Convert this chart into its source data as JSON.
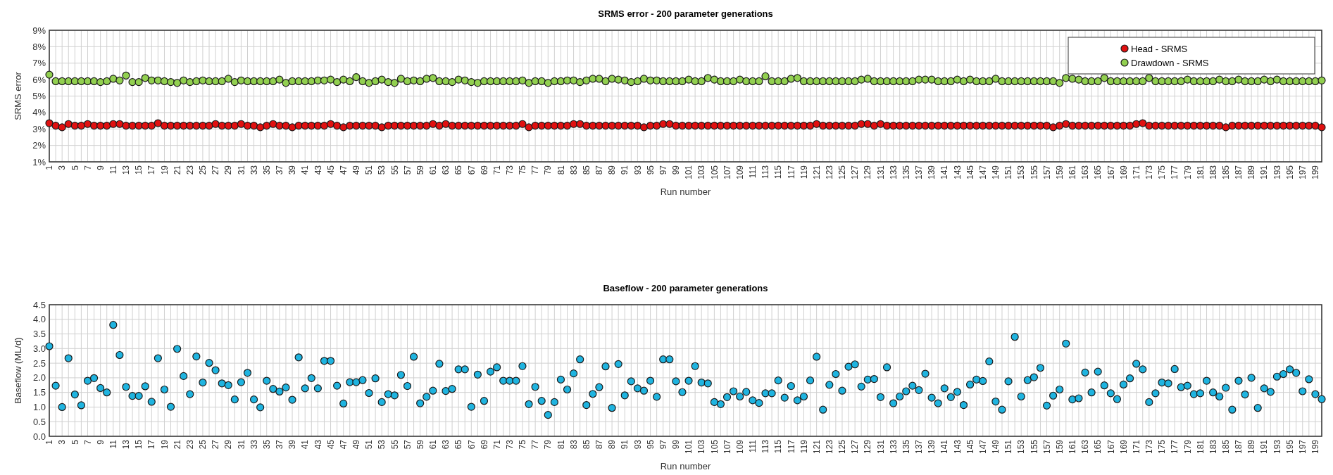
{
  "chart_data": [
    {
      "type": "scatter",
      "title": "SRMS error  - 200 parameter generations",
      "xlabel": "Run number",
      "ylabel": "SRMS error",
      "categories": [
        "1",
        null,
        "3",
        null,
        "5",
        null,
        "7",
        null,
        "9",
        null,
        "11",
        null,
        "13",
        null,
        "15",
        null,
        "17",
        null,
        "19",
        null,
        "21",
        null,
        "23",
        null,
        "25",
        null,
        "27",
        null,
        "29",
        null,
        "31",
        null,
        "33",
        null,
        "35",
        null,
        "37",
        null,
        "39",
        null,
        "41",
        null,
        "43",
        null,
        "45",
        null,
        "47",
        null,
        "49",
        null,
        "51",
        null,
        "53",
        null,
        "55",
        null,
        "57",
        null,
        "59",
        null,
        "61",
        null,
        "63",
        null,
        "65",
        null,
        "67",
        null,
        "69",
        null,
        "71",
        null,
        "73",
        null,
        "75",
        null,
        "77",
        null,
        "79",
        null,
        "81",
        null,
        "83",
        null,
        "85",
        null,
        "87",
        null,
        "89",
        null,
        "91",
        null,
        "93",
        null,
        "95",
        null,
        "97",
        null,
        "99",
        null,
        "101",
        null,
        "103",
        null,
        "105",
        null,
        "107",
        null,
        "109",
        null,
        "111",
        null,
        "113",
        null,
        "115",
        null,
        "117",
        null,
        "119",
        null,
        "121",
        null,
        "123",
        null,
        "125",
        null,
        "127",
        null,
        "129",
        null,
        "131",
        null,
        "133",
        null,
        "135",
        null,
        "137",
        null,
        "139",
        null,
        "141",
        null,
        "143",
        null,
        "145",
        null,
        "147",
        null,
        "149",
        null,
        "151",
        null,
        "153",
        null,
        "155",
        null,
        "157",
        null,
        "159",
        null,
        "161",
        null,
        "163",
        null,
        "165",
        null,
        "167",
        null,
        "169",
        null,
        "171",
        null,
        "173",
        null,
        "175",
        null,
        "177",
        null,
        "179",
        null,
        "181",
        null,
        "183",
        null,
        "185",
        null,
        "187",
        null,
        "189",
        null,
        "191",
        null,
        "193",
        null,
        "195",
        null,
        "197",
        null,
        "199",
        null
      ],
      "series": [
        {
          "name": "Head - SRMS",
          "color": "#e01010",
          "values": [
            3.35,
            3.2,
            3.1,
            3.3,
            3.2,
            3.2,
            3.3,
            3.2,
            3.2,
            3.2,
            3.3,
            3.3,
            3.2,
            3.2,
            3.2,
            3.2,
            3.2,
            3.35,
            3.2,
            3.2,
            3.2,
            3.2,
            3.2,
            3.2,
            3.2,
            3.2,
            3.3,
            3.2,
            3.2,
            3.2,
            3.3,
            3.2,
            3.2,
            3.1,
            3.2,
            3.3,
            3.2,
            3.2,
            3.1,
            3.2,
            3.2,
            3.2,
            3.2,
            3.2,
            3.3,
            3.2,
            3.1,
            3.2,
            3.2,
            3.2,
            3.2,
            3.2,
            3.1,
            3.2,
            3.2,
            3.2,
            3.2,
            3.2,
            3.2,
            3.2,
            3.3,
            3.2,
            3.3,
            3.2,
            3.2,
            3.2,
            3.2,
            3.2,
            3.2,
            3.2,
            3.2,
            3.2,
            3.2,
            3.2,
            3.3,
            3.1,
            3.2,
            3.2,
            3.2,
            3.2,
            3.2,
            3.2,
            3.3,
            3.3,
            3.2,
            3.2,
            3.2,
            3.2,
            3.2,
            3.2,
            3.2,
            3.2,
            3.2,
            3.1,
            3.2,
            3.2,
            3.3,
            3.3,
            3.2,
            3.2,
            3.2,
            3.2,
            3.2,
            3.2,
            3.2,
            3.2,
            3.2,
            3.2,
            3.2,
            3.2,
            3.2,
            3.2,
            3.2,
            3.2,
            3.2,
            3.2,
            3.2,
            3.2,
            3.2,
            3.2,
            3.3,
            3.2,
            3.2,
            3.2,
            3.2,
            3.2,
            3.2,
            3.3,
            3.3,
            3.2,
            3.3,
            3.2,
            3.2,
            3.2,
            3.2,
            3.2,
            3.2,
            3.2,
            3.2,
            3.2,
            3.2,
            3.2,
            3.2,
            3.2,
            3.2,
            3.2,
            3.2,
            3.2,
            3.2,
            3.2,
            3.2,
            3.2,
            3.2,
            3.2,
            3.2,
            3.2,
            3.2,
            3.1,
            3.2,
            3.3,
            3.2,
            3.2,
            3.2,
            3.2,
            3.2,
            3.2,
            3.2,
            3.2,
            3.2,
            3.2,
            3.3,
            3.35,
            3.2,
            3.2,
            3.2,
            3.2,
            3.2,
            3.2,
            3.2,
            3.2,
            3.2,
            3.2,
            3.2,
            3.2,
            3.1,
            3.2,
            3.2,
            3.2,
            3.2,
            3.2,
            3.2,
            3.2,
            3.2,
            3.2,
            3.2,
            3.2,
            3.2,
            3.2,
            3.2,
            3.1
          ]
        },
        {
          "name": "Drawdown - SRMS",
          "color": "#92d050",
          "values": [
            6.3,
            5.9,
            5.9,
            5.9,
            5.9,
            5.9,
            5.9,
            5.9,
            5.85,
            5.9,
            6.05,
            5.95,
            6.25,
            5.85,
            5.85,
            6.1,
            5.95,
            5.95,
            5.9,
            5.85,
            5.8,
            5.95,
            5.85,
            5.9,
            5.95,
            5.9,
            5.9,
            5.9,
            6.05,
            5.85,
            5.95,
            5.9,
            5.9,
            5.9,
            5.9,
            5.9,
            6.0,
            5.8,
            5.9,
            5.9,
            5.9,
            5.9,
            5.95,
            5.95,
            6.0,
            5.85,
            6.0,
            5.9,
            6.15,
            5.9,
            5.8,
            5.9,
            6.0,
            5.85,
            5.8,
            6.05,
            5.9,
            5.95,
            5.9,
            6.05,
            6.1,
            5.9,
            5.9,
            5.85,
            6.0,
            5.95,
            5.85,
            5.8,
            5.9,
            5.9,
            5.9,
            5.9,
            5.9,
            5.9,
            5.95,
            5.8,
            5.9,
            5.9,
            5.8,
            5.9,
            5.9,
            5.95,
            5.95,
            5.85,
            5.95,
            6.05,
            6.05,
            5.9,
            6.05,
            6.0,
            5.95,
            5.85,
            5.9,
            6.05,
            5.95,
            5.95,
            5.9,
            5.9,
            5.9,
            5.9,
            6.0,
            5.9,
            5.9,
            6.1,
            6.0,
            5.9,
            5.9,
            5.9,
            6.0,
            5.9,
            5.9,
            5.9,
            6.2,
            5.9,
            5.9,
            5.9,
            6.05,
            6.1,
            5.9,
            5.9,
            5.9,
            5.9,
            5.9,
            5.9,
            5.9,
            5.9,
            5.9,
            6.0,
            6.05,
            5.9,
            5.9,
            5.9,
            5.9,
            5.9,
            5.9,
            5.9,
            6.0,
            6.0,
            6.0,
            5.9,
            5.9,
            5.9,
            6.0,
            5.9,
            6.0,
            5.9,
            5.9,
            5.9,
            6.05,
            5.9,
            5.9,
            5.9,
            5.9,
            5.9,
            5.9,
            5.9,
            5.9,
            5.9,
            5.8,
            6.1,
            6.05,
            6.0,
            5.9,
            5.9,
            5.9,
            6.1,
            5.9,
            5.9,
            5.9,
            5.9,
            5.9,
            5.9,
            6.1,
            5.9,
            5.9,
            5.9,
            5.9,
            5.9,
            6.0,
            5.9,
            5.9,
            5.9,
            5.9,
            6.0,
            5.9,
            5.9,
            6.0,
            5.9,
            5.9,
            5.9,
            6.0,
            5.9,
            6.0,
            5.9,
            5.9,
            5.9,
            5.9,
            5.9,
            5.9,
            5.95
          ]
        }
      ],
      "ylim": [
        1,
        9
      ],
      "yticks": [
        {
          "value": 1,
          "label": "1%"
        },
        {
          "value": 2,
          "label": "2%"
        },
        {
          "value": 3,
          "label": "3%"
        },
        {
          "value": 4,
          "label": "4%"
        },
        {
          "value": 5,
          "label": "5%"
        },
        {
          "value": 6,
          "label": "6%"
        },
        {
          "value": 7,
          "label": "7%"
        },
        {
          "value": 8,
          "label": "8%"
        },
        {
          "value": 9,
          "label": "9%"
        }
      ],
      "grid": true,
      "legend": "top right",
      "marker": "circle"
    },
    {
      "type": "scatter",
      "title": "Baseflow  - 200 parameter generations",
      "xlabel": "Run number",
      "ylabel": "Baseflow (ML/d)",
      "categories": [
        "1",
        null,
        "3",
        null,
        "5",
        null,
        "7",
        null,
        "9",
        null,
        "11",
        null,
        "13",
        null,
        "15",
        null,
        "17",
        null,
        "19",
        null,
        "21",
        null,
        "23",
        null,
        "25",
        null,
        "27",
        null,
        "29",
        null,
        "31",
        null,
        "33",
        null,
        "35",
        null,
        "37",
        null,
        "39",
        null,
        "41",
        null,
        "43",
        null,
        "45",
        null,
        "47",
        null,
        "49",
        null,
        "51",
        null,
        "53",
        null,
        "55",
        null,
        "57",
        null,
        "59",
        null,
        "61",
        null,
        "63",
        null,
        "65",
        null,
        "67",
        null,
        "69",
        null,
        "71",
        null,
        "73",
        null,
        "75",
        null,
        "77",
        null,
        "79",
        null,
        "81",
        null,
        "83",
        null,
        "85",
        null,
        "87",
        null,
        "89",
        null,
        "91",
        null,
        "93",
        null,
        "95",
        null,
        "97",
        null,
        "99",
        null,
        "101",
        null,
        "103",
        null,
        "105",
        null,
        "107",
        null,
        "109",
        null,
        "111",
        null,
        "113",
        null,
        "115",
        null,
        "117",
        null,
        "119",
        null,
        "121",
        null,
        "123",
        null,
        "125",
        null,
        "127",
        null,
        "129",
        null,
        "131",
        null,
        "133",
        null,
        "135",
        null,
        "137",
        null,
        "139",
        null,
        "141",
        null,
        "143",
        null,
        "145",
        null,
        "147",
        null,
        "149",
        null,
        "151",
        null,
        "153",
        null,
        "155",
        null,
        "157",
        null,
        "159",
        null,
        "161",
        null,
        "163",
        null,
        "165",
        null,
        "167",
        null,
        "169",
        null,
        "171",
        null,
        "173",
        null,
        "175",
        null,
        "177",
        null,
        "179",
        null,
        "181",
        null,
        "183",
        null,
        "185",
        null,
        "187",
        null,
        "189",
        null,
        "191",
        null,
        "193",
        null,
        "195",
        null,
        "197",
        null,
        "199",
        null
      ],
      "series": [
        {
          "color": "#1fb4e0",
          "values": [
            3.08,
            1.73,
            1.0,
            2.67,
            1.43,
            1.06,
            1.9,
            1.99,
            1.65,
            1.5,
            3.81,
            2.78,
            1.69,
            1.38,
            1.38,
            1.71,
            1.18,
            2.67,
            1.6,
            1.01,
            2.99,
            2.06,
            1.44,
            2.73,
            1.84,
            2.51,
            2.26,
            1.81,
            1.75,
            1.26,
            1.85,
            2.17,
            1.26,
            0.99,
            1.9,
            1.62,
            1.53,
            1.67,
            1.25,
            2.7,
            1.64,
            1.99,
            1.64,
            2.58,
            2.58,
            1.73,
            1.12,
            1.85,
            1.85,
            1.92,
            1.48,
            1.98,
            1.17,
            1.44,
            1.4,
            2.1,
            1.72,
            2.72,
            1.13,
            1.35,
            1.56,
            2.48,
            1.55,
            1.62,
            2.29,
            2.29,
            1.01,
            2.11,
            1.21,
            2.21,
            2.36,
            1.9,
            1.9,
            1.9,
            2.4,
            1.1,
            1.69,
            1.21,
            0.73,
            1.17,
            1.94,
            1.6,
            2.15,
            2.63,
            1.07,
            1.45,
            1.68,
            2.39,
            0.97,
            2.47,
            1.4,
            1.88,
            1.64,
            1.56,
            1.9,
            1.35,
            2.63,
            2.63,
            1.88,
            1.51,
            1.9,
            2.4,
            1.84,
            1.81,
            1.17,
            1.1,
            1.34,
            1.54,
            1.36,
            1.52,
            1.23,
            1.14,
            1.47,
            1.47,
            1.91,
            1.32,
            1.72,
            1.23,
            1.36,
            1.91,
            2.72,
            0.91,
            1.76,
            2.13,
            1.56,
            2.38,
            2.46,
            1.7,
            1.94,
            1.96,
            1.34,
            2.36,
            1.13,
            1.36,
            1.54,
            1.73,
            1.58,
            2.14,
            1.32,
            1.13,
            1.64,
            1.34,
            1.52,
            1.07,
            1.77,
            1.94,
            1.89,
            2.56,
            1.19,
            0.91,
            1.88,
            3.4,
            1.36,
            1.92,
            2.02,
            2.34,
            1.05,
            1.39,
            1.6,
            3.17,
            1.26,
            1.3,
            2.18,
            1.5,
            2.21,
            1.74,
            1.47,
            1.27,
            1.77,
            1.98,
            2.48,
            2.29,
            1.17,
            1.47,
            1.84,
            1.81,
            2.3,
            1.68,
            1.73,
            1.44,
            1.47,
            1.9,
            1.5,
            1.36,
            1.66,
            0.91,
            1.9,
            1.43,
            2.0,
            0.97,
            1.64,
            1.52,
            2.04,
            2.13,
            2.29,
            2.17,
            1.54,
            1.95,
            1.44,
            1.27
          ]
        }
      ],
      "ylim": [
        0,
        4.5
      ],
      "yticks": [
        {
          "value": 0,
          "label": "0.0"
        },
        {
          "value": 0.5,
          "label": "0.5"
        },
        {
          "value": 1,
          "label": "1.0"
        },
        {
          "value": 1.5,
          "label": "1.5"
        },
        {
          "value": 2,
          "label": "2.0"
        },
        {
          "value": 2.5,
          "label": "2.5"
        },
        {
          "value": 3,
          "label": "3.0"
        },
        {
          "value": 3.5,
          "label": "3.5"
        },
        {
          "value": 4,
          "label": "4.0"
        },
        {
          "value": 4.5,
          "label": "4.5"
        }
      ],
      "grid": true,
      "marker": "circle"
    }
  ]
}
